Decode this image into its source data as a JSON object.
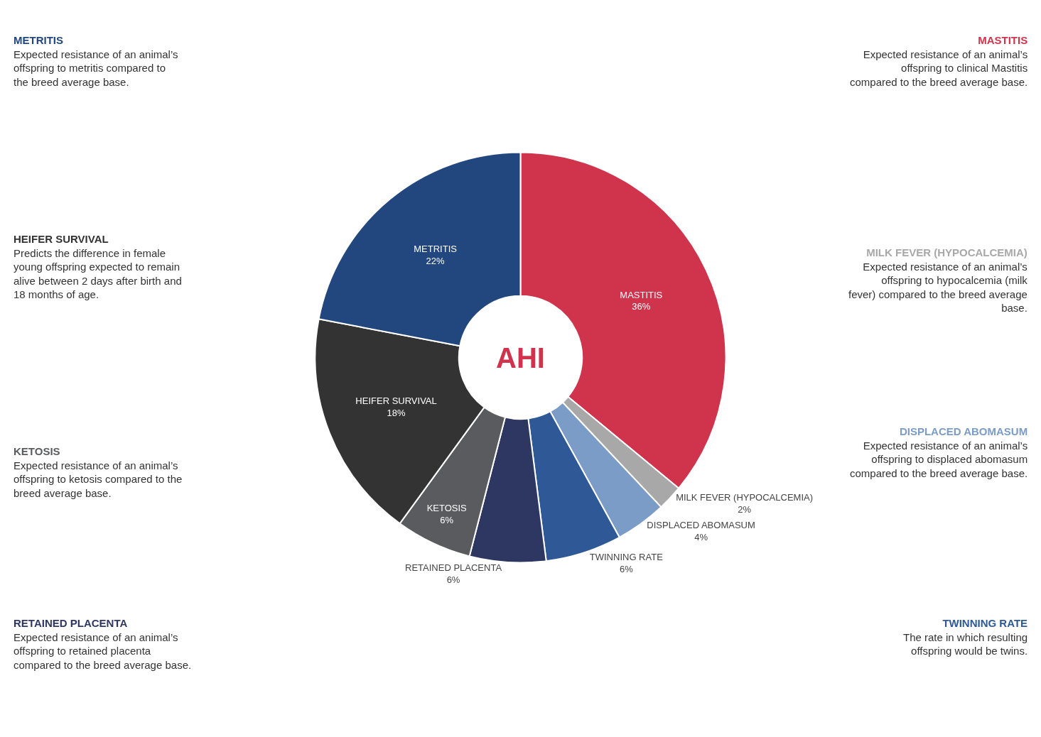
{
  "chart_data": {
    "type": "donut",
    "title": "AHI",
    "categories": [
      "MASTITIS",
      "MILK FEVER (HYPOCALCEMIA)",
      "DISPLACED ABOMASUM",
      "TWINNING RATE",
      "RETAINED PLACENTA",
      "KETOSIS",
      "HEIFER SURVIVAL",
      "METRITIS"
    ],
    "values": [
      36,
      2,
      4,
      6,
      6,
      6,
      18,
      22
    ],
    "value_labels": [
      "36%",
      "2%",
      "4%",
      "6%",
      "6%",
      "6%",
      "18%",
      "22%"
    ],
    "colors": [
      "#d0344c",
      "#a8a8a8",
      "#7b9cc6",
      "#2e5896",
      "#2e3761",
      "#5a5b5e",
      "#333333",
      "#21477e"
    ],
    "annotations": [
      "Expected resistance of an animal’s offspring to clinical Mastitis compared to the breed average base.",
      "Expected resistance of an animal’s offspring to hypocalcemia (milk fever) compared to the breed average base.",
      "Expected resistance of an animal’s offspring to displaced abomasum compared to the breed average base.",
      "The rate in which resulting offspring would be twins.",
      "Expected resistance of an animal’s offspring to retained placenta compared to the breed average base.",
      "Expected resistance of an animal’s offspring to ketosis compared to the breed average base.",
      "Predicts the difference in female young offspring expected to remain alive between 2 days after birth and 18 months of age.",
      "Expected resistance of an animal’s offspring to metritis compared to the breed average base."
    ],
    "legend": false
  }
}
